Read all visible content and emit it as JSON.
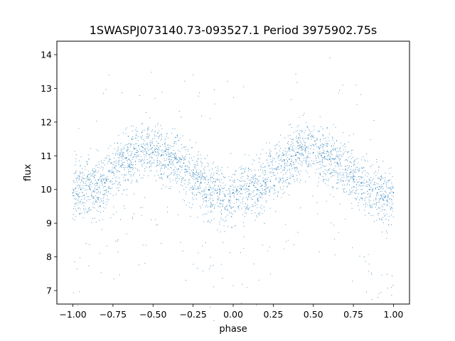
{
  "chart_data": {
    "type": "scatter",
    "title": "1SWASPJ073140.73-093527.1 Period 3975902.75s",
    "xlabel": "phase",
    "ylabel": "flux",
    "xlim": [
      -1.1,
      1.1
    ],
    "ylim": [
      6.6,
      14.4
    ],
    "xticks": [
      -1.0,
      -0.75,
      -0.5,
      -0.25,
      0.0,
      0.25,
      0.5,
      0.75,
      1.0
    ],
    "xtick_labels": [
      "−1.00",
      "−0.75",
      "−0.50",
      "−0.25",
      "0.00",
      "0.25",
      "0.50",
      "0.75",
      "1.00"
    ],
    "yticks": [
      7,
      8,
      9,
      10,
      11,
      12,
      13,
      14
    ],
    "ytick_labels": [
      "7",
      "8",
      "9",
      "10",
      "11",
      "12",
      "13",
      "14"
    ],
    "grid": false,
    "marker_color": "#1f77b4",
    "series": [
      {
        "x": [
          -1.0,
          -0.95,
          -0.9,
          -0.85,
          -0.8,
          -0.75,
          -0.7,
          -0.65,
          -0.6,
          -0.55,
          -0.5,
          -0.45,
          -0.4,
          -0.35,
          -0.3,
          -0.25,
          -0.2,
          -0.15,
          -0.1,
          -0.05,
          0.0,
          0.05,
          0.1,
          0.15,
          0.2,
          0.25,
          0.3,
          0.35,
          0.4,
          0.45,
          0.5,
          0.55,
          0.6,
          0.65,
          0.7,
          0.75,
          0.8,
          0.85,
          0.9,
          0.95,
          1.0
        ],
        "y": [
          9.9,
          10.0,
          10.1,
          10.0,
          10.2,
          10.5,
          10.7,
          10.9,
          11.1,
          11.2,
          11.1,
          11.0,
          10.9,
          10.8,
          10.6,
          10.4,
          10.2,
          10.0,
          9.9,
          9.8,
          9.9,
          10.0,
          10.1,
          10.0,
          10.2,
          10.5,
          10.7,
          10.9,
          11.1,
          11.2,
          11.1,
          11.0,
          10.9,
          10.8,
          10.6,
          10.4,
          10.2,
          10.0,
          9.9,
          9.8,
          9.9
        ]
      }
    ]
  }
}
